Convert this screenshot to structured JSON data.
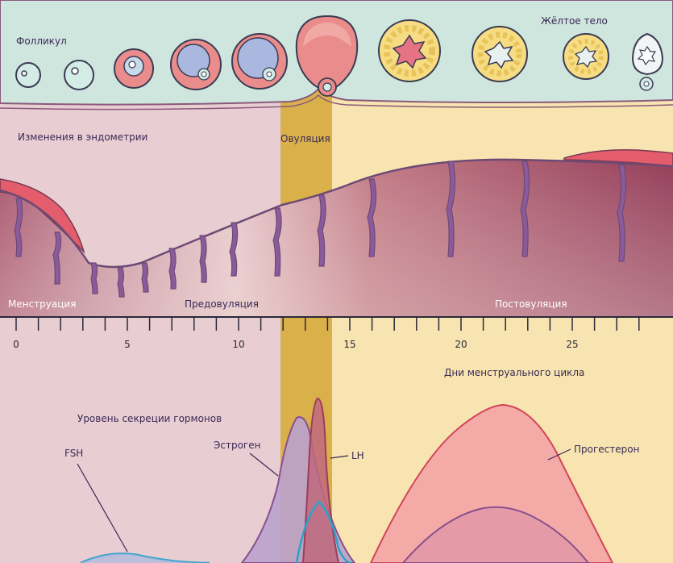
{
  "labels": {
    "follicle": "Фолликул",
    "corpus_luteum": "Жёлтое тело",
    "endometrium_changes": "Изменения в эндометрии",
    "ovulation": "Овуляция",
    "menstruation": "Менструация",
    "pre_ovulation": "Предовуляция",
    "post_ovulation": "Постовуляция",
    "cycle_days": "Дни менструального цикла",
    "hormone_level": "Уровень секреции гормонов"
  },
  "axis": {
    "ticks": [
      "0",
      "5",
      "10",
      "15",
      "20",
      "25"
    ],
    "days_total": 28
  },
  "hormones": {
    "fsh": "FSH",
    "estrogen": "Эстроген",
    "lh": "LH",
    "progesterone": "Прогестерон"
  },
  "colors": {
    "menstrual_phase": "#e8cdd2",
    "ovulation_band": "#d9b04a",
    "luteal_phase": "#f7e4b0",
    "endometrium_dark": "#9c4760",
    "gland": "#8a5a9a",
    "ovary_band": "#cfe6de",
    "fsh_line": "#2aa2c8",
    "estrogen_fill": "#b9a2cc",
    "lh_fill": "#c0687e",
    "progesterone_fill": "#f4aaa6",
    "progesterone_line": "#d3455a"
  },
  "stages": {
    "follicles": 6,
    "corpus_luteum_stages": 4
  }
}
